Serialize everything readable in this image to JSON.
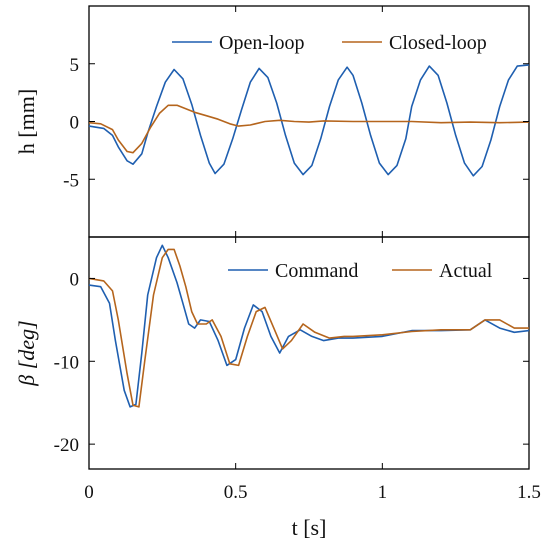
{
  "colors": {
    "blue": "#1f5fb0",
    "orange": "#b5651d",
    "axis": "#000000"
  },
  "chart_data": [
    {
      "type": "line",
      "ylabel": "h [mm]",
      "xlim": [
        0,
        1.5
      ],
      "ylim": [
        -10,
        10
      ],
      "yticks": [
        5,
        0,
        -5
      ],
      "ytick_labels": [
        "5",
        "0",
        "-5"
      ],
      "grid": false,
      "legend": "top-right",
      "series": [
        {
          "name": "Open-loop",
          "color": "#1f5fb0",
          "x": [
            0,
            0.05,
            0.08,
            0.1,
            0.13,
            0.15,
            0.18,
            0.2,
            0.23,
            0.26,
            0.29,
            0.32,
            0.35,
            0.38,
            0.41,
            0.43,
            0.46,
            0.49,
            0.52,
            0.55,
            0.58,
            0.61,
            0.64,
            0.67,
            0.7,
            0.73,
            0.76,
            0.79,
            0.82,
            0.85,
            0.88,
            0.9,
            0.93,
            0.96,
            0.99,
            1.02,
            1.05,
            1.08,
            1.1,
            1.13,
            1.16,
            1.19,
            1.22,
            1.25,
            1.28,
            1.31,
            1.34,
            1.37,
            1.4,
            1.43,
            1.46,
            1.5
          ],
          "y": [
            -0.4,
            -0.6,
            -1.2,
            -2.2,
            -3.4,
            -3.7,
            -2.8,
            -1.0,
            1.3,
            3.4,
            4.5,
            3.7,
            1.5,
            -1.2,
            -3.6,
            -4.5,
            -3.7,
            -1.5,
            1.0,
            3.4,
            4.6,
            3.8,
            1.6,
            -1.2,
            -3.6,
            -4.6,
            -3.8,
            -1.5,
            1.3,
            3.6,
            4.7,
            4.0,
            1.6,
            -1.2,
            -3.6,
            -4.6,
            -3.8,
            -1.5,
            1.3,
            3.6,
            4.8,
            4.0,
            1.6,
            -1.2,
            -3.6,
            -4.7,
            -3.9,
            -1.6,
            1.3,
            3.6,
            4.8,
            4.9
          ]
        },
        {
          "name": "Closed-loop",
          "color": "#b5651d",
          "x": [
            0,
            0.04,
            0.08,
            0.1,
            0.13,
            0.15,
            0.18,
            0.21,
            0.24,
            0.27,
            0.3,
            0.33,
            0.36,
            0.4,
            0.44,
            0.48,
            0.51,
            0.55,
            0.6,
            0.65,
            0.7,
            0.75,
            0.8,
            0.9,
            1.0,
            1.1,
            1.2,
            1.3,
            1.4,
            1.5
          ],
          "y": [
            -0.1,
            -0.2,
            -0.7,
            -1.6,
            -2.6,
            -2.7,
            -1.9,
            -0.5,
            0.7,
            1.4,
            1.4,
            1.1,
            0.8,
            0.5,
            0.2,
            -0.2,
            -0.4,
            -0.3,
            0.0,
            0.1,
            0.0,
            -0.05,
            0.05,
            0.0,
            0.0,
            0.0,
            -0.1,
            -0.05,
            -0.1,
            -0.05
          ]
        }
      ]
    },
    {
      "type": "line",
      "xlabel": "t [s]",
      "ylabel": "β [deg]",
      "xlim": [
        0,
        1.5
      ],
      "ylim": [
        -23,
        5
      ],
      "xticks": [
        0,
        0.5,
        1,
        1.5
      ],
      "xtick_labels": [
        "0",
        "0.5",
        "1",
        "1.5"
      ],
      "yticks": [
        0,
        -10,
        -20
      ],
      "ytick_labels": [
        "0",
        "-10",
        "-20"
      ],
      "grid": false,
      "legend": "top-right",
      "series": [
        {
          "name": "Command",
          "color": "#1f5fb0",
          "x": [
            0,
            0.04,
            0.07,
            0.09,
            0.12,
            0.14,
            0.16,
            0.18,
            0.2,
            0.23,
            0.25,
            0.27,
            0.3,
            0.32,
            0.34,
            0.36,
            0.38,
            0.41,
            0.44,
            0.47,
            0.5,
            0.53,
            0.56,
            0.59,
            0.62,
            0.65,
            0.68,
            0.72,
            0.76,
            0.8,
            0.85,
            0.9,
            1.0,
            1.1,
            1.2,
            1.3,
            1.35,
            1.4,
            1.45,
            1.5
          ],
          "y": [
            -0.8,
            -1.0,
            -3.0,
            -7.5,
            -13.5,
            -15.5,
            -15.2,
            -9.0,
            -2.0,
            2.5,
            4.0,
            2.5,
            -0.5,
            -3.0,
            -5.5,
            -6.0,
            -5.0,
            -5.2,
            -7.5,
            -10.5,
            -9.8,
            -6.0,
            -3.2,
            -4.0,
            -7.0,
            -9.0,
            -7.0,
            -6.2,
            -7.0,
            -7.5,
            -7.2,
            -7.2,
            -7.0,
            -6.3,
            -6.3,
            -6.2,
            -5.0,
            -6.0,
            -6.5,
            -6.3
          ]
        },
        {
          "name": "Actual",
          "color": "#b5651d",
          "x": [
            0,
            0.05,
            0.08,
            0.1,
            0.13,
            0.15,
            0.17,
            0.19,
            0.22,
            0.25,
            0.27,
            0.29,
            0.31,
            0.33,
            0.35,
            0.37,
            0.4,
            0.42,
            0.45,
            0.48,
            0.51,
            0.54,
            0.57,
            0.6,
            0.63,
            0.66,
            0.69,
            0.73,
            0.77,
            0.82,
            0.87,
            0.9,
            1.0,
            1.1,
            1.2,
            1.3,
            1.35,
            1.4,
            1.45,
            1.5
          ],
          "y": [
            0,
            -0.3,
            -1.5,
            -5.0,
            -11.5,
            -15.3,
            -15.5,
            -10.0,
            -2.0,
            2.5,
            3.5,
            3.5,
            1.5,
            -1.0,
            -4.0,
            -5.5,
            -5.5,
            -5.0,
            -7.0,
            -10.3,
            -10.5,
            -7.0,
            -4.0,
            -3.5,
            -6.0,
            -8.5,
            -7.5,
            -5.5,
            -6.5,
            -7.2,
            -7.0,
            -7.0,
            -6.8,
            -6.4,
            -6.2,
            -6.2,
            -5.0,
            -5.0,
            -6.0,
            -6.0
          ]
        }
      ]
    }
  ]
}
